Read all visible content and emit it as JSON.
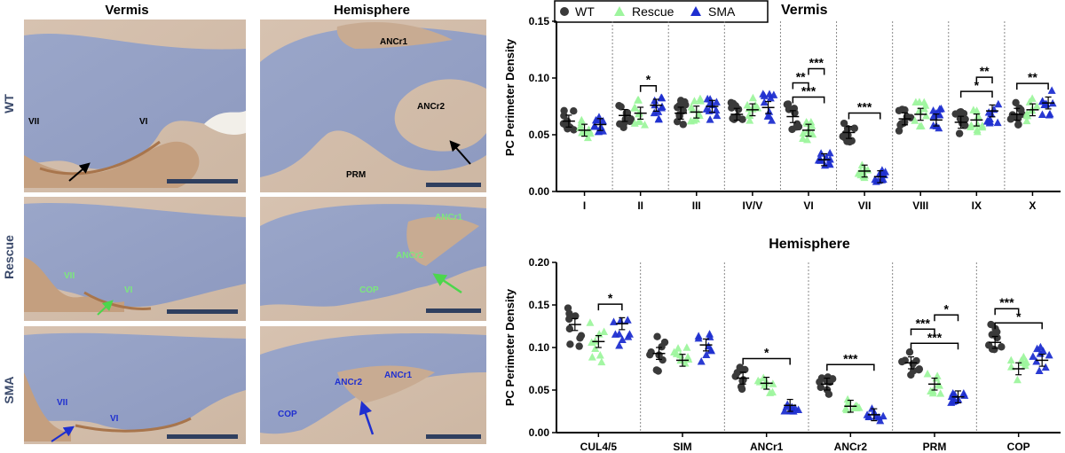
{
  "micrographs": {
    "column_titles": [
      "Vermis",
      "Hemisphere"
    ],
    "row_labels": [
      "WT",
      "Rescue",
      "SMA"
    ],
    "panels": [
      {
        "row": "WT",
        "col": "Vermis",
        "labels": [
          {
            "text": "VII",
            "color": "#000000"
          },
          {
            "text": "VI",
            "color": "#000000"
          }
        ],
        "arrow_color": "#000000"
      },
      {
        "row": "WT",
        "col": "Hemisphere",
        "labels": [
          {
            "text": "ANCr1",
            "color": "#000000"
          },
          {
            "text": "ANCr2",
            "color": "#000000"
          },
          {
            "text": "PRM",
            "color": "#000000"
          }
        ],
        "arrow_color": "#000000"
      },
      {
        "row": "Rescue",
        "col": "Vermis",
        "labels": [
          {
            "text": "VII",
            "color": "#7CE87C"
          },
          {
            "text": "VI",
            "color": "#7CE87C"
          }
        ],
        "arrow_color": "#4CD64C"
      },
      {
        "row": "Rescue",
        "col": "Hemisphere",
        "labels": [
          {
            "text": "ANCr1",
            "color": "#7CE87C"
          },
          {
            "text": "ANCr2",
            "color": "#7CE87C"
          },
          {
            "text": "COP",
            "color": "#7CE87C"
          }
        ],
        "arrow_color": "#4CD64C"
      },
      {
        "row": "SMA",
        "col": "Vermis",
        "labels": [
          {
            "text": "VII",
            "color": "#1f2fd0"
          },
          {
            "text": "VI",
            "color": "#1f2fd0"
          }
        ],
        "arrow_color": "#1f2fd0"
      },
      {
        "row": "SMA",
        "col": "Hemisphere",
        "labels": [
          {
            "text": "ANCr2",
            "color": "#1f2fd0"
          },
          {
            "text": "ANCr1",
            "color": "#1f2fd0"
          },
          {
            "text": "COP",
            "color": "#1f2fd0"
          }
        ],
        "arrow_color": "#1f2fd0"
      }
    ]
  },
  "legend": [
    {
      "name": "WT",
      "color": "#3a3a3a",
      "shape": "circle"
    },
    {
      "name": "Rescue",
      "color": "#9ef59e",
      "shape": "triangle"
    },
    {
      "name": "SMA",
      "color": "#1f2fd0",
      "shape": "triangle"
    }
  ],
  "chart_data": [
    {
      "type": "scatter",
      "title": "Vermis",
      "ylabel": "PC Perimeter Density",
      "ylim": [
        0,
        0.15
      ],
      "yticks": [
        "0.00",
        "0.05",
        "0.10",
        "0.15"
      ],
      "categories": [
        "I",
        "II",
        "III",
        "IV/V",
        "VI",
        "VII",
        "VIII",
        "IX",
        "X"
      ],
      "legend_position": "top",
      "series": [
        {
          "name": "WT",
          "means": [
            0.062,
            0.067,
            0.069,
            0.068,
            0.066,
            0.052,
            0.064,
            0.061,
            0.068
          ]
        },
        {
          "name": "Rescue",
          "means": [
            0.054,
            0.069,
            0.07,
            0.072,
            0.054,
            0.018,
            0.068,
            0.063,
            0.072
          ]
        },
        {
          "name": "SMA",
          "means": [
            0.059,
            0.076,
            0.075,
            0.074,
            0.028,
            0.013,
            0.063,
            0.071,
            0.078
          ]
        }
      ],
      "significance": [
        {
          "category": "II",
          "from": "Rescue",
          "to": "SMA",
          "label": "*"
        },
        {
          "category": "VI",
          "from": "WT",
          "to": "SMA",
          "label": "***"
        },
        {
          "category": "VI",
          "from": "WT",
          "to": "Rescue",
          "label": "**"
        },
        {
          "category": "VI",
          "from": "Rescue",
          "to": "SMA",
          "label": "***"
        },
        {
          "category": "VII",
          "from": "WT",
          "to": "SMA",
          "label": "***"
        },
        {
          "category": "IX",
          "from": "WT",
          "to": "SMA",
          "label": "*"
        },
        {
          "category": "IX",
          "from": "Rescue",
          "to": "SMA",
          "label": "**"
        },
        {
          "category": "X",
          "from": "WT",
          "to": "SMA",
          "label": "**"
        }
      ]
    },
    {
      "type": "scatter",
      "title": "Hemisphere",
      "ylabel": "PC Perimeter Density",
      "ylim": [
        0,
        0.2
      ],
      "yticks": [
        "0.00",
        "0.05",
        "0.10",
        "0.15",
        "0.20"
      ],
      "categories": [
        "CUL4/5",
        "SIM",
        "ANCr1",
        "ANCr2",
        "PRM",
        "COP"
      ],
      "series": [
        {
          "name": "WT",
          "means": [
            0.127,
            0.093,
            0.064,
            0.057,
            0.082,
            0.106
          ]
        },
        {
          "name": "Rescue",
          "means": [
            0.107,
            0.085,
            0.058,
            0.031,
            0.057,
            0.075
          ]
        },
        {
          "name": "SMA",
          "means": [
            0.128,
            0.103,
            0.032,
            0.021,
            0.042,
            0.085
          ]
        }
      ],
      "significance": [
        {
          "category": "CUL4/5",
          "from": "Rescue",
          "to": "SMA",
          "label": "*"
        },
        {
          "category": "ANCr1",
          "from": "WT",
          "to": "SMA",
          "label": "*"
        },
        {
          "category": "ANCr2",
          "from": "WT",
          "to": "SMA",
          "label": "***"
        },
        {
          "category": "PRM",
          "from": "WT",
          "to": "SMA",
          "label": "***"
        },
        {
          "category": "PRM",
          "from": "WT",
          "to": "Rescue",
          "label": "***"
        },
        {
          "category": "PRM",
          "from": "Rescue",
          "to": "SMA",
          "label": "*"
        },
        {
          "category": "COP",
          "from": "WT",
          "to": "SMA",
          "label": "*"
        },
        {
          "category": "COP",
          "from": "WT",
          "to": "Rescue",
          "label": "***"
        }
      ]
    }
  ]
}
